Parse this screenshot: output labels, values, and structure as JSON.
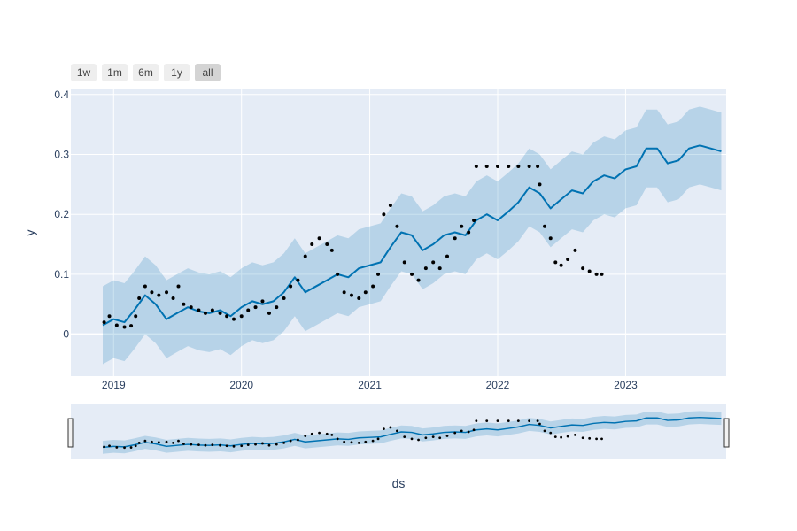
{
  "range_buttons": [
    {
      "label": "1w",
      "active": false
    },
    {
      "label": "1m",
      "active": false
    },
    {
      "label": "6m",
      "active": false
    },
    {
      "label": "1y",
      "active": false
    },
    {
      "label": "all",
      "active": true
    }
  ],
  "chart_data": {
    "type": "line",
    "xlabel": "ds",
    "ylabel": "y",
    "x_type": "date",
    "xlim": [
      "2018-09-01",
      "2023-10-15"
    ],
    "ylim": [
      -0.07,
      0.41
    ],
    "x_ticks": [
      "2019-01-01",
      "2020-01-01",
      "2021-01-01",
      "2022-01-01",
      "2023-01-01"
    ],
    "x_tick_labels": [
      "2019",
      "2020",
      "2021",
      "2022",
      "2023"
    ],
    "y_ticks": [
      0,
      0.1,
      0.2,
      0.3,
      0.4
    ],
    "y_tick_labels": [
      "0",
      "0.1",
      "0.2",
      "0.3",
      "0.4"
    ],
    "grid": true,
    "colors": {
      "plot_bg": "#e5ecf6",
      "forecast": "#0072b2",
      "band": "rgba(0,114,178,0.2)",
      "actual": "#000000"
    },
    "series": [
      {
        "role": "forecast",
        "x": [
          "2018-12-01",
          "2019-01-01",
          "2019-02-01",
          "2019-03-01",
          "2019-04-01",
          "2019-05-01",
          "2019-06-01",
          "2019-07-01",
          "2019-08-01",
          "2019-09-01",
          "2019-10-01",
          "2019-11-01",
          "2019-12-01",
          "2020-01-01",
          "2020-02-01",
          "2020-03-01",
          "2020-04-01",
          "2020-05-01",
          "2020-06-01",
          "2020-07-01",
          "2020-08-01",
          "2020-09-01",
          "2020-10-01",
          "2020-11-01",
          "2020-12-01",
          "2021-01-01",
          "2021-02-01",
          "2021-03-01",
          "2021-04-01",
          "2021-05-01",
          "2021-06-01",
          "2021-07-01",
          "2021-08-01",
          "2021-09-01",
          "2021-10-01",
          "2021-11-01",
          "2021-12-01",
          "2022-01-01",
          "2022-02-01",
          "2022-03-01",
          "2022-04-01",
          "2022-05-01",
          "2022-06-01",
          "2022-07-01",
          "2022-08-01",
          "2022-09-01",
          "2022-10-01",
          "2022-11-01",
          "2022-12-01",
          "2023-01-01",
          "2023-02-01",
          "2023-03-01",
          "2023-04-01",
          "2023-05-01",
          "2023-06-01",
          "2023-07-01",
          "2023-08-01",
          "2023-09-01",
          "2023-10-01"
        ],
        "y": [
          0.015,
          0.025,
          0.02,
          0.04,
          0.065,
          0.05,
          0.025,
          0.035,
          0.045,
          0.038,
          0.035,
          0.04,
          0.03,
          0.045,
          0.055,
          0.05,
          0.055,
          0.07,
          0.095,
          0.07,
          0.08,
          0.09,
          0.1,
          0.095,
          0.11,
          0.115,
          0.12,
          0.145,
          0.17,
          0.165,
          0.14,
          0.15,
          0.165,
          0.17,
          0.165,
          0.19,
          0.2,
          0.19,
          0.205,
          0.22,
          0.245,
          0.235,
          0.21,
          0.225,
          0.24,
          0.235,
          0.255,
          0.265,
          0.26,
          0.275,
          0.28,
          0.31,
          0.31,
          0.285,
          0.29,
          0.31,
          0.315,
          0.31,
          0.305
        ]
      },
      {
        "role": "uncertainty_band",
        "x": [
          "2018-12-01",
          "2019-01-01",
          "2019-02-01",
          "2019-03-01",
          "2019-04-01",
          "2019-05-01",
          "2019-06-01",
          "2019-07-01",
          "2019-08-01",
          "2019-09-01",
          "2019-10-01",
          "2019-11-01",
          "2019-12-01",
          "2020-01-01",
          "2020-02-01",
          "2020-03-01",
          "2020-04-01",
          "2020-05-01",
          "2020-06-01",
          "2020-07-01",
          "2020-08-01",
          "2020-09-01",
          "2020-10-01",
          "2020-11-01",
          "2020-12-01",
          "2021-01-01",
          "2021-02-01",
          "2021-03-01",
          "2021-04-01",
          "2021-05-01",
          "2021-06-01",
          "2021-07-01",
          "2021-08-01",
          "2021-09-01",
          "2021-10-01",
          "2021-11-01",
          "2021-12-01",
          "2022-01-01",
          "2022-02-01",
          "2022-03-01",
          "2022-04-01",
          "2022-05-01",
          "2022-06-01",
          "2022-07-01",
          "2022-08-01",
          "2022-09-01",
          "2022-10-01",
          "2022-11-01",
          "2022-12-01",
          "2023-01-01",
          "2023-02-01",
          "2023-03-01",
          "2023-04-01",
          "2023-05-01",
          "2023-06-01",
          "2023-07-01",
          "2023-08-01",
          "2023-09-01",
          "2023-10-01"
        ],
        "upper": [
          0.08,
          0.09,
          0.085,
          0.105,
          0.13,
          0.115,
          0.09,
          0.1,
          0.11,
          0.103,
          0.1,
          0.105,
          0.095,
          0.11,
          0.12,
          0.115,
          0.12,
          0.135,
          0.16,
          0.135,
          0.145,
          0.155,
          0.165,
          0.16,
          0.175,
          0.18,
          0.185,
          0.21,
          0.235,
          0.23,
          0.205,
          0.215,
          0.23,
          0.235,
          0.23,
          0.255,
          0.265,
          0.255,
          0.27,
          0.285,
          0.31,
          0.3,
          0.275,
          0.29,
          0.305,
          0.3,
          0.32,
          0.33,
          0.325,
          0.34,
          0.345,
          0.375,
          0.375,
          0.35,
          0.355,
          0.375,
          0.38,
          0.375,
          0.37
        ],
        "lower": [
          -0.05,
          -0.04,
          -0.045,
          -0.025,
          0.0,
          -0.015,
          -0.04,
          -0.03,
          -0.02,
          -0.027,
          -0.03,
          -0.025,
          -0.035,
          -0.02,
          -0.01,
          -0.015,
          -0.01,
          0.005,
          0.03,
          0.005,
          0.015,
          0.025,
          0.035,
          0.03,
          0.045,
          0.05,
          0.055,
          0.08,
          0.105,
          0.1,
          0.075,
          0.085,
          0.1,
          0.105,
          0.1,
          0.125,
          0.135,
          0.125,
          0.14,
          0.155,
          0.18,
          0.17,
          0.145,
          0.16,
          0.175,
          0.17,
          0.19,
          0.2,
          0.195,
          0.21,
          0.215,
          0.245,
          0.245,
          0.22,
          0.225,
          0.245,
          0.25,
          0.245,
          0.24
        ]
      },
      {
        "role": "actual",
        "x": [
          "2018-12-05",
          "2018-12-20",
          "2019-01-10",
          "2019-02-01",
          "2019-02-20",
          "2019-03-05",
          "2019-03-15",
          "2019-04-01",
          "2019-04-20",
          "2019-05-10",
          "2019-06-01",
          "2019-06-20",
          "2019-07-05",
          "2019-07-20",
          "2019-08-10",
          "2019-09-01",
          "2019-09-20",
          "2019-10-10",
          "2019-11-01",
          "2019-11-20",
          "2019-12-10",
          "2020-01-01",
          "2020-01-20",
          "2020-02-10",
          "2020-03-01",
          "2020-03-20",
          "2020-04-10",
          "2020-05-01",
          "2020-05-20",
          "2020-06-10",
          "2020-07-01",
          "2020-07-20",
          "2020-08-10",
          "2020-09-01",
          "2020-09-15",
          "2020-10-01",
          "2020-10-20",
          "2020-11-10",
          "2020-12-01",
          "2020-12-20",
          "2021-01-10",
          "2021-01-25",
          "2021-02-10",
          "2021-03-01",
          "2021-03-20",
          "2021-04-10",
          "2021-05-01",
          "2021-05-20",
          "2021-06-10",
          "2021-07-01",
          "2021-07-20",
          "2021-08-10",
          "2021-09-01",
          "2021-09-20",
          "2021-10-10",
          "2021-10-25",
          "2021-11-01",
          "2021-12-01",
          "2022-01-01",
          "2022-02-01",
          "2022-03-01",
          "2022-04-01",
          "2022-04-25",
          "2022-05-01",
          "2022-05-15",
          "2022-06-01",
          "2022-06-15",
          "2022-07-01",
          "2022-07-20",
          "2022-08-10",
          "2022-09-01",
          "2022-09-20",
          "2022-10-10",
          "2022-10-25"
        ],
        "y": [
          0.02,
          0.03,
          0.015,
          0.012,
          0.014,
          0.03,
          0.06,
          0.08,
          0.07,
          0.065,
          0.07,
          0.06,
          0.08,
          0.05,
          0.045,
          0.04,
          0.035,
          0.04,
          0.035,
          0.03,
          0.025,
          0.03,
          0.04,
          0.045,
          0.055,
          0.035,
          0.045,
          0.06,
          0.08,
          0.09,
          0.13,
          0.15,
          0.16,
          0.15,
          0.14,
          0.1,
          0.07,
          0.065,
          0.06,
          0.07,
          0.08,
          0.1,
          0.2,
          0.215,
          0.18,
          0.12,
          0.1,
          0.09,
          0.11,
          0.12,
          0.11,
          0.13,
          0.16,
          0.18,
          0.17,
          0.19,
          0.28,
          0.28,
          0.28,
          0.28,
          0.28,
          0.28,
          0.28,
          0.25,
          0.18,
          0.16,
          0.12,
          0.115,
          0.125,
          0.14,
          0.11,
          0.105,
          0.1,
          0.1
        ]
      }
    ]
  }
}
